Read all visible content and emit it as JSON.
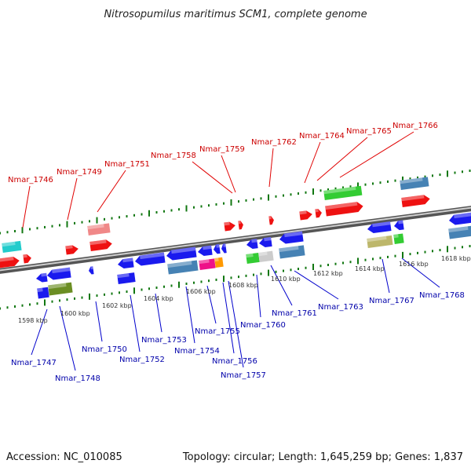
{
  "title": "Nitrosopumilus maritimus SCM1, complete genome",
  "footer": {
    "accession": "Accession: NC_010085",
    "info": "Topology: circular; Length: 1,645,259 bp; Genes: 1,837"
  },
  "axis_ticks": [
    "1598 kbp",
    "1600 kbp",
    "1602 kbp",
    "1604 kbp",
    "1606 kbp",
    "1608 kbp",
    "1610 kbp",
    "1612 kbp",
    "1614 kbp",
    "1616 kbp",
    "1618 kbp"
  ],
  "labels_top": [
    "Nmar_1746",
    "Nmar_1749",
    "Nmar_1751",
    "Nmar_1758",
    "Nmar_1759",
    "Nmar_1762",
    "Nmar_1764",
    "Nmar_1765",
    "Nmar_1766"
  ],
  "labels_bottom": [
    "Nmar_1747",
    "Nmar_1748",
    "Nmar_1750",
    "Nmar_1752",
    "Nmar_1753",
    "Nmar_1754",
    "Nmar_1755",
    "Nmar_1756",
    "Nmar_1757",
    "Nmar_1760",
    "Nmar_1761",
    "Nmar_1763",
    "Nmar_1767",
    "Nmar_1768"
  ],
  "colors": {
    "forward_gene": "#ee1111",
    "reverse_gene": "#1a1aee",
    "top_label": "#cc0000",
    "bottom_label": "#0000aa",
    "backbone": "#888888"
  }
}
